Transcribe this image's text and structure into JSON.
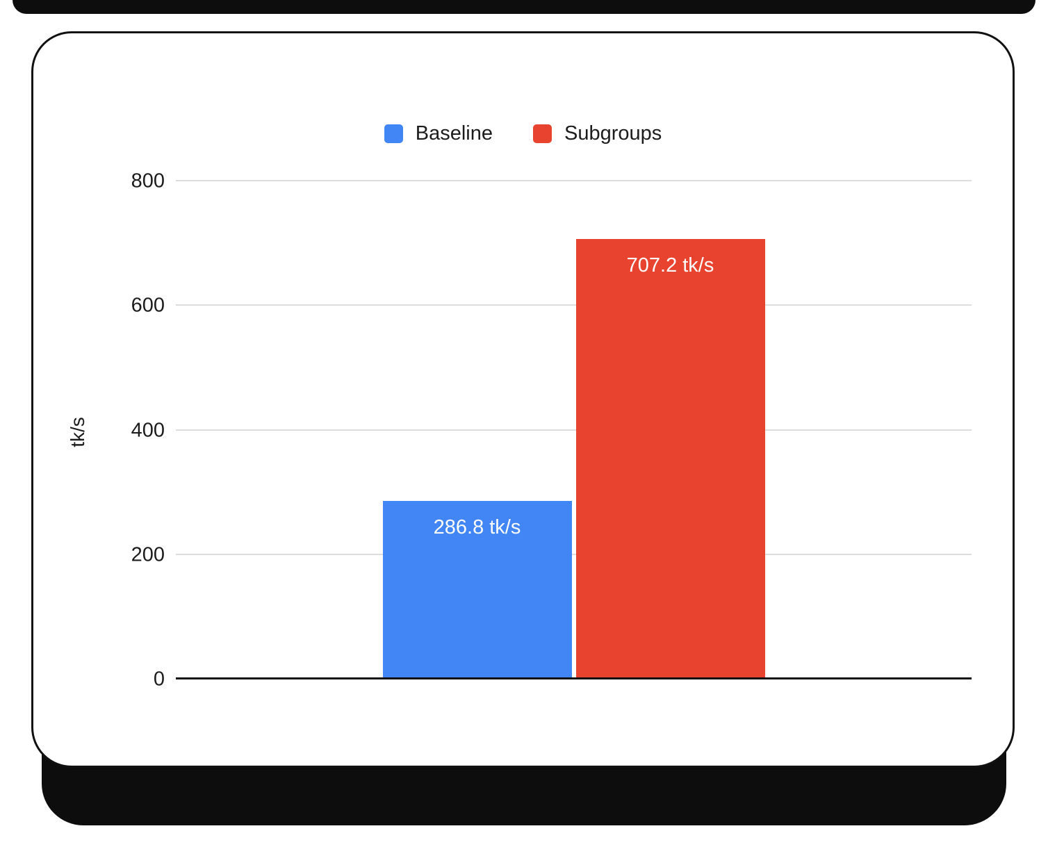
{
  "chart_data": {
    "type": "bar",
    "categories": [
      "Baseline",
      "Subgroups"
    ],
    "series": [
      {
        "name": "Baseline",
        "value": 286.8,
        "label": "286.8 tk/s",
        "color": "#4285f4"
      },
      {
        "name": "Subgroups",
        "value": 707.2,
        "label": "707.2 tk/s",
        "color": "#e8432e"
      }
    ],
    "title": "",
    "xlabel": "",
    "ylabel": "tk/s",
    "ylim": [
      0,
      800
    ],
    "yticks": [
      0,
      200,
      400,
      600,
      800
    ],
    "grid": true,
    "legend_position": "top"
  },
  "colors": {
    "baseline": "#4285f4",
    "subgroups": "#e8432e",
    "gridline": "#dcdcdc",
    "axis": "#111111",
    "card_border": "#111111",
    "shadow": "#0d0d0d"
  }
}
